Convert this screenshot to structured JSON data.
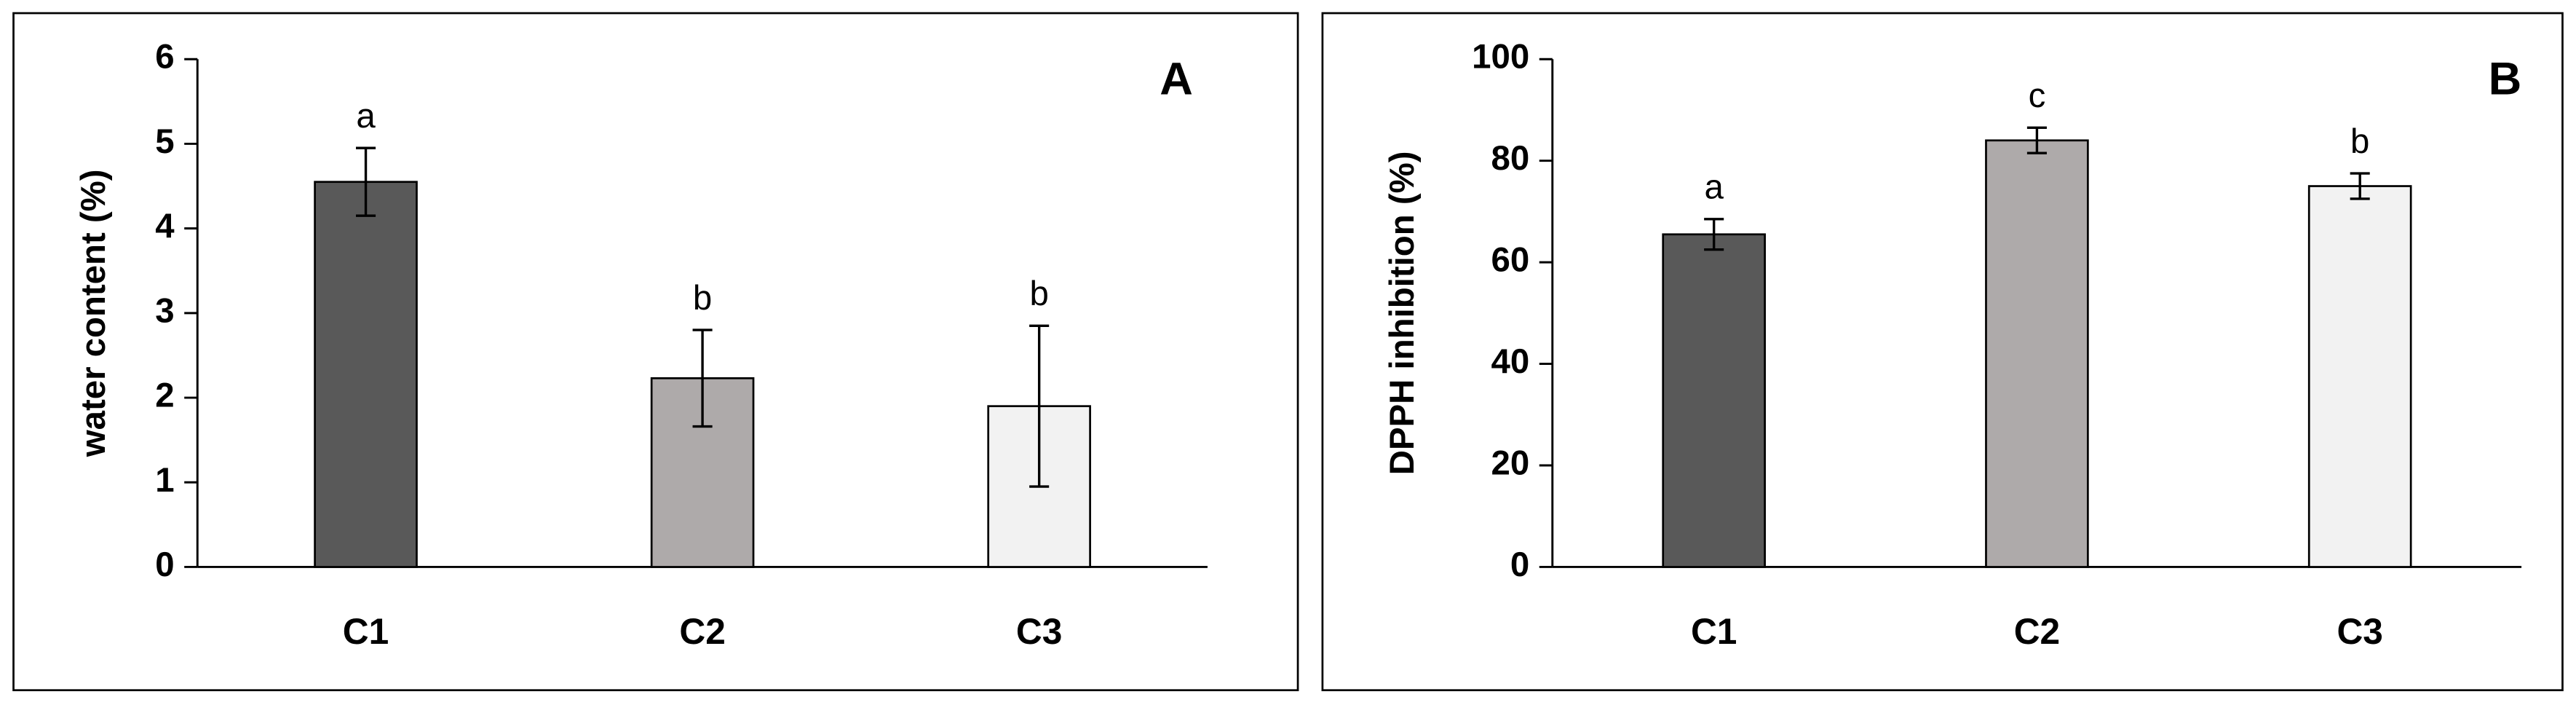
{
  "chart_data": [
    {
      "type": "bar",
      "panel_label": "A",
      "y_label": "water content (%)",
      "categories": [
        "C1",
        "C2",
        "C3"
      ],
      "values": [
        4.55,
        2.23,
        1.9
      ],
      "errors": [
        0.4,
        0.57,
        0.95
      ],
      "annotations": [
        "a",
        "b",
        "b"
      ],
      "colors": [
        "#595959",
        "#aeaaaa",
        "#f2f2f2"
      ],
      "ylim": [
        0,
        6
      ],
      "yticks": [
        0,
        1,
        2,
        3,
        4,
        5,
        6
      ],
      "grid": false
    },
    {
      "type": "bar",
      "panel_label": "B",
      "y_label": "DPPH inhibition (%)",
      "categories": [
        "C1",
        "C2",
        "C3"
      ],
      "values": [
        65.5,
        84,
        75
      ],
      "errors": [
        3,
        2.5,
        2.5
      ],
      "annotations": [
        "a",
        "c",
        "b"
      ],
      "colors": [
        "#595959",
        "#aeaaaa",
        "#f2f2f2"
      ],
      "ylim": [
        0,
        100
      ],
      "yticks": [
        0,
        20,
        40,
        60,
        80,
        100
      ],
      "grid": false
    }
  ]
}
